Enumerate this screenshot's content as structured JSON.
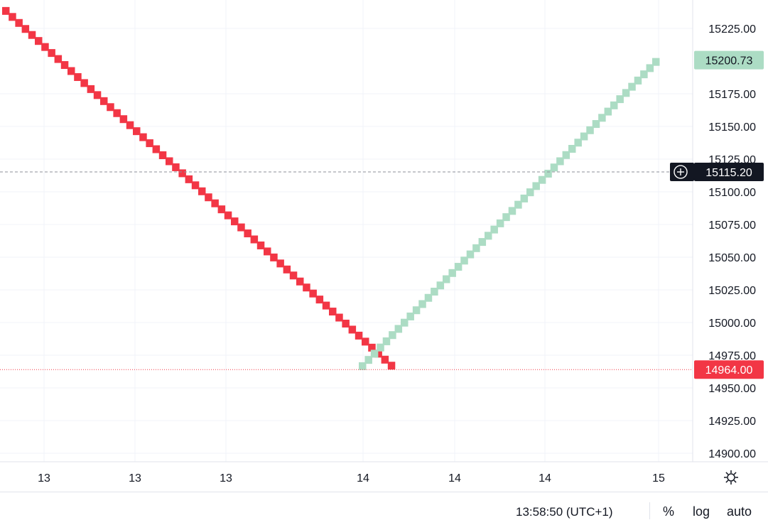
{
  "chart_data": {
    "type": "renko",
    "y_ticks": [
      "15225.00",
      "15175.00",
      "15150.00",
      "15125.00",
      "15100.00",
      "15075.00",
      "15050.00",
      "15025.00",
      "15000.00",
      "14975.00",
      "14950.00",
      "14925.00",
      "14900.00"
    ],
    "y_tick_values": [
      15225,
      15175,
      15150,
      15125,
      15100,
      15075,
      15050,
      15025,
      15000,
      14975,
      14950,
      14925,
      14900
    ],
    "ylim": [
      14895,
      15237
    ],
    "x_ticks": [
      "13",
      "13",
      "13",
      "14",
      "14",
      "14",
      "15"
    ],
    "grid": true,
    "bricks": {
      "down": {
        "from": 15240,
        "to": 14964,
        "color": "#f23645",
        "count": 60
      },
      "up": {
        "from": 14968,
        "to": 15200.73,
        "color": "#acdcc4",
        "count": 50
      }
    },
    "last_price": {
      "label": "15200.73",
      "value": 15200.73,
      "color": "#acdcc4"
    },
    "low_price": {
      "label": "14964.00",
      "value": 14964.0,
      "color": "#f23645"
    },
    "crosshair_price": {
      "label": "15115.20",
      "value": 15115.2,
      "color": "#131722"
    }
  },
  "footer": {
    "clock": "13:58:50 (UTC+1)",
    "percent_label": "%",
    "log_label": "log",
    "auto_label": "auto"
  },
  "icons": {
    "settings": "gear-icon",
    "crosshair_add": "plus-circle-icon"
  }
}
